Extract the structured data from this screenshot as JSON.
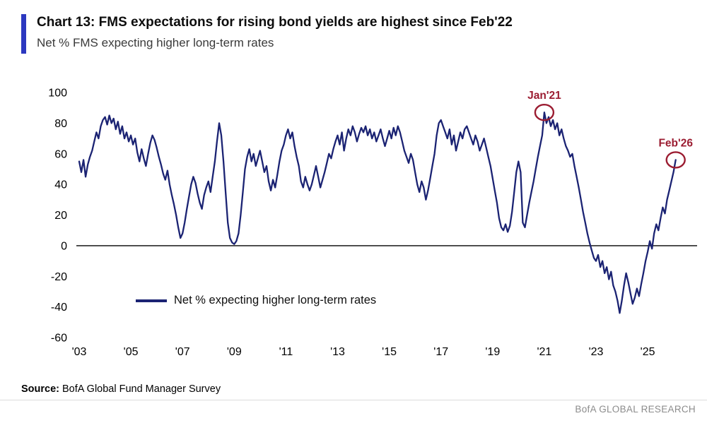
{
  "header": {
    "title": "Chart 13: FMS expectations for rising bond yields are highest since Feb'22",
    "subtitle": "Net % FMS expecting higher long-term rates"
  },
  "footer": {
    "source_label": "Source:",
    "source_text": "BofA Global Fund Manager Survey",
    "brand": "BofA GLOBAL RESEARCH"
  },
  "colors": {
    "accent": "#2c38c0",
    "line": "#1b2373",
    "annotation": "#9b1c31",
    "brand_gray": "#8c8c8c",
    "zero_line": "#000000"
  },
  "chart_data": {
    "type": "line",
    "title": "Chart 13: FMS expectations for rising bond yields are highest since Feb'22",
    "subtitle": "Net % FMS expecting higher long-term rates",
    "xlabel": "",
    "ylabel": "Net % FMS expecting higher long-term rates",
    "ylim": [
      -60,
      100
    ],
    "yticks": [
      100,
      80,
      60,
      40,
      20,
      0,
      -20,
      -40,
      -60
    ],
    "xticks": [
      "'03",
      "'05",
      "'07",
      "'09",
      "'11",
      "'13",
      "'15",
      "'17",
      "'19",
      "'21",
      "'23",
      "'25"
    ],
    "xtick_years": [
      2003,
      2005,
      2007,
      2009,
      2011,
      2013,
      2015,
      2017,
      2019,
      2021,
      2023,
      2025
    ],
    "grid": false,
    "zero_line": true,
    "legend_position": "inside-lower-left",
    "line_color": "#1b2373",
    "annotation_color": "#9b1c31",
    "annotations": [
      {
        "label": "Jan'21",
        "year": 2021.0,
        "value": 87
      },
      {
        "label": "Feb'26",
        "year": 2026.083,
        "value": 56
      }
    ],
    "series": [
      {
        "name": "Net % expecting higher long-term rates",
        "start_year": 2003,
        "frequency": "monthly",
        "values": [
          55,
          48,
          56,
          45,
          53,
          58,
          62,
          68,
          74,
          70,
          78,
          82,
          84,
          79,
          85,
          80,
          83,
          76,
          81,
          73,
          78,
          70,
          74,
          68,
          72,
          66,
          70,
          61,
          55,
          63,
          57,
          52,
          60,
          67,
          72,
          69,
          64,
          58,
          53,
          47,
          43,
          49,
          40,
          33,
          27,
          20,
          12,
          5,
          8,
          15,
          24,
          32,
          40,
          45,
          41,
          34,
          28,
          24,
          33,
          38,
          42,
          35,
          45,
          55,
          68,
          80,
          72,
          55,
          35,
          15,
          5,
          2,
          1,
          3,
          8,
          20,
          35,
          50,
          58,
          63,
          55,
          60,
          52,
          57,
          62,
          55,
          48,
          52,
          42,
          36,
          43,
          38,
          46,
          55,
          62,
          66,
          72,
          76,
          70,
          74,
          65,
          58,
          52,
          42,
          38,
          45,
          40,
          36,
          40,
          46,
          52,
          45,
          38,
          43,
          48,
          54,
          60,
          57,
          63,
          68,
          72,
          66,
          74,
          62,
          70,
          76,
          72,
          78,
          74,
          68,
          73,
          77,
          74,
          78,
          72,
          76,
          70,
          74,
          68,
          72,
          76,
          70,
          65,
          70,
          75,
          70,
          77,
          72,
          78,
          74,
          68,
          62,
          58,
          54,
          60,
          56,
          48,
          40,
          35,
          42,
          38,
          30,
          36,
          44,
          52,
          60,
          72,
          80,
          82,
          78,
          74,
          70,
          76,
          66,
          72,
          62,
          68,
          74,
          70,
          76,
          78,
          74,
          70,
          66,
          72,
          68,
          62,
          66,
          70,
          64,
          58,
          52,
          44,
          36,
          28,
          18,
          12,
          10,
          14,
          9,
          13,
          22,
          35,
          48,
          55,
          48,
          15,
          12,
          20,
          28,
          35,
          42,
          50,
          58,
          65,
          72,
          87,
          80,
          84,
          78,
          82,
          76,
          80,
          72,
          76,
          70,
          65,
          62,
          58,
          60,
          52,
          45,
          38,
          30,
          22,
          15,
          8,
          2,
          -3,
          -8,
          -10,
          -6,
          -14,
          -10,
          -18,
          -14,
          -22,
          -17,
          -26,
          -30,
          -36,
          -44,
          -36,
          -26,
          -18,
          -24,
          -31,
          -38,
          -34,
          -28,
          -33,
          -25,
          -18,
          -10,
          -4,
          3,
          -2,
          8,
          14,
          10,
          18,
          25,
          21,
          30,
          36,
          42,
          48,
          56
        ]
      }
    ]
  }
}
